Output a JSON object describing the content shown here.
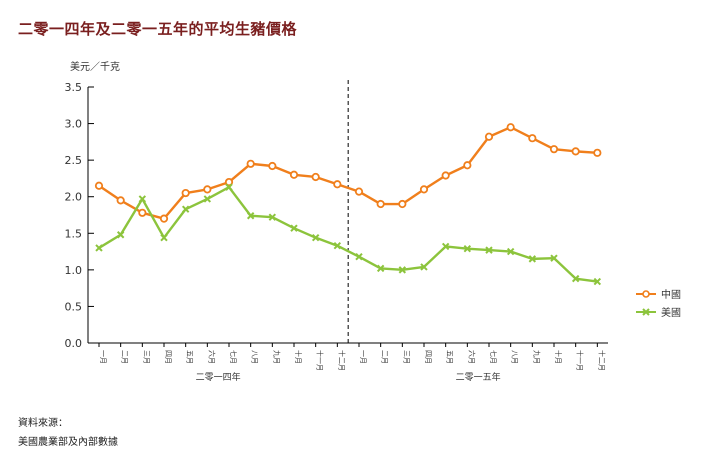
{
  "title": "二零一四年及二零一五年的平均生豬價格",
  "source": {
    "label": "資料來源：",
    "text": "美國農業部及內部數據"
  },
  "chart_data": {
    "type": "line",
    "title": "二零一四年及二零一五年的平均生豬價格",
    "ylabel": "美元／千克",
    "ylim": [
      0,
      3.5
    ],
    "yticks": [
      "0.0",
      "0.5",
      "1.0",
      "1.5",
      "2.0",
      "2.5",
      "3.0",
      "3.5"
    ],
    "categories": [
      "一月",
      "二月",
      "三月",
      "四月",
      "五月",
      "六月",
      "七月",
      "八月",
      "九月",
      "十月",
      "十一月",
      "十二月",
      "一月",
      "二月",
      "三月",
      "四月",
      "五月",
      "六月",
      "七月",
      "八月",
      "九月",
      "十月",
      "十一月",
      "十二月"
    ],
    "groups": [
      {
        "label": "二零一四年",
        "from": 0,
        "to": 11
      },
      {
        "label": "二零一五年",
        "from": 12,
        "to": 23
      }
    ],
    "divider_after_index": 11,
    "grid": false,
    "legend_position": "right",
    "series": [
      {
        "name": "中國",
        "color": "#f07f1c",
        "marker": "circle",
        "values": [
          2.15,
          1.95,
          1.78,
          1.7,
          2.05,
          2.1,
          2.2,
          2.45,
          2.42,
          2.3,
          2.27,
          2.17,
          2.07,
          1.9,
          1.9,
          2.1,
          2.29,
          2.43,
          2.82,
          2.95,
          2.8,
          2.65,
          2.62,
          2.6
        ]
      },
      {
        "name": "美國",
        "color": "#8cc43c",
        "marker": "x",
        "values": [
          1.3,
          1.48,
          1.97,
          1.44,
          1.83,
          1.97,
          2.13,
          1.74,
          1.72,
          1.57,
          1.44,
          1.33,
          1.18,
          1.02,
          1.0,
          1.04,
          1.32,
          1.29,
          1.27,
          1.25,
          1.15,
          1.16,
          0.88,
          0.84
        ]
      }
    ]
  }
}
